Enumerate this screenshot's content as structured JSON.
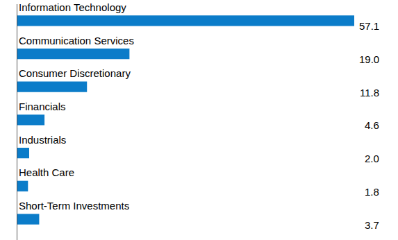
{
  "chart_data": {
    "type": "bar",
    "orientation": "horizontal",
    "categories": [
      "Information Technology",
      "Communication Services",
      "Consumer Discretionary",
      "Financials",
      "Industrials",
      "Health Care",
      "Short-Term Investments"
    ],
    "values": [
      57.1,
      19.0,
      11.8,
      4.6,
      2.0,
      1.8,
      3.7
    ],
    "value_labels": [
      "57.1",
      "19.0",
      "11.8",
      "4.6",
      "2.0",
      "1.8",
      "3.7"
    ],
    "color": "#0b7cc9",
    "xlim": [
      0,
      57.1
    ],
    "grid": false,
    "data_labels": true,
    "tick_labels": false
  }
}
